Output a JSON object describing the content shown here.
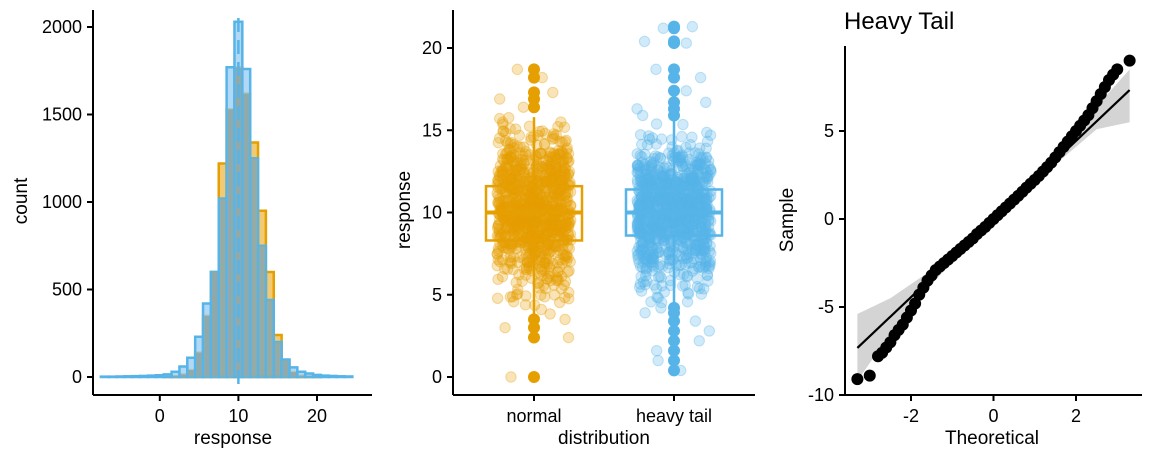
{
  "colors": {
    "normal": "#E69F00",
    "heavy_tail": "#56B4E9",
    "heavy_tail_fill": "#9DCFF2",
    "overlap": "#8FA9A8",
    "qq_points": "#000000",
    "qq_band": "#CCCCCC"
  },
  "chart_data": [
    {
      "type": "histogram",
      "title": "",
      "xlabel": "response",
      "ylabel": "count",
      "xlim": [
        -8.5,
        27
      ],
      "ylim": [
        -100,
        2100
      ],
      "xticks": [
        "0",
        "10",
        "20"
      ],
      "yticks": [
        "0",
        "500",
        "1000",
        "1500",
        "2000"
      ],
      "bin_width": 1,
      "bins": [
        -7,
        -6,
        -5,
        -4,
        -3,
        -2,
        -1,
        0,
        1,
        2,
        3,
        4,
        5,
        6,
        7,
        8,
        9,
        10,
        11,
        12,
        13,
        14,
        15,
        16,
        17,
        18,
        19,
        20,
        21,
        22,
        23,
        24
      ],
      "series": [
        {
          "name": "normal",
          "values": [
            0,
            0,
            0,
            0,
            0,
            0,
            0,
            0,
            2,
            5,
            15,
            40,
            140,
            350,
            600,
            1220,
            1530,
            1770,
            1620,
            1340,
            950,
            600,
            240,
            95,
            28,
            8,
            3,
            1,
            0,
            0,
            0,
            0
          ]
        },
        {
          "name": "heavy tail",
          "values": [
            2,
            2,
            3,
            4,
            5,
            6,
            8,
            10,
            15,
            30,
            60,
            110,
            230,
            420,
            600,
            1020,
            1770,
            2030,
            1760,
            1250,
            750,
            440,
            200,
            100,
            55,
            30,
            20,
            12,
            8,
            6,
            4,
            3
          ]
        }
      ],
      "reference_line": 10
    },
    {
      "type": "box",
      "title": "",
      "xlabel": "distribution",
      "ylabel": "response",
      "ylim": [
        -1,
        22
      ],
      "categories": [
        "normal",
        "heavy tail"
      ],
      "yticks": [
        "0",
        "5",
        "10",
        "15",
        "20"
      ],
      "boxes": [
        {
          "name": "normal",
          "q1": 8.3,
          "median": 10.0,
          "q3": 11.6,
          "whisker_low": 3.8,
          "whisker_high": 15.8,
          "outliers": [
            0.0,
            2.4,
            3.0,
            3.5,
            16.4,
            16.9,
            17.3,
            18.2,
            18.7
          ]
        },
        {
          "name": "heavy tail",
          "q1": 8.6,
          "median": 10.0,
          "q3": 11.4,
          "whisker_low": 4.4,
          "whisker_high": 15.6,
          "outliers": [
            0.4,
            1.0,
            1.6,
            2.2,
            2.8,
            3.4,
            3.9,
            4.2,
            15.9,
            16.3,
            16.7,
            17.4,
            18.2,
            18.7,
            20.3,
            20.4,
            21.2,
            21.3
          ]
        }
      ]
    },
    {
      "type": "scatter",
      "title": "Heavy Tail",
      "xlabel": "Theoretical",
      "ylabel": "Sample",
      "xlim": [
        -3.6,
        3.6
      ],
      "ylim": [
        -10,
        9.8
      ],
      "xticks": [
        "-2",
        "0",
        "2"
      ],
      "yticks": [
        "-10",
        "-5",
        "0",
        "5"
      ],
      "reference_line": {
        "intercept": 0.0,
        "slope": 2.22
      },
      "points": [
        [
          -3.3,
          -9.1
        ],
        [
          -3.0,
          -8.9
        ],
        [
          -2.8,
          -7.8
        ],
        [
          -2.7,
          -7.6
        ],
        [
          -2.6,
          -7.3
        ],
        [
          -2.5,
          -7.0
        ],
        [
          -2.4,
          -6.6
        ],
        [
          -2.3,
          -6.3
        ],
        [
          -2.2,
          -6.0
        ],
        [
          -2.1,
          -5.6
        ],
        [
          -2.0,
          -5.2
        ],
        [
          -1.9,
          -4.8
        ],
        [
          -1.8,
          -4.3
        ],
        [
          -1.7,
          -3.9
        ],
        [
          -1.6,
          -3.5
        ],
        [
          -1.5,
          -3.2
        ],
        [
          -1.4,
          -2.9
        ],
        [
          -1.3,
          -2.7
        ],
        [
          -1.2,
          -2.5
        ],
        [
          -1.1,
          -2.3
        ],
        [
          -1.0,
          -2.1
        ],
        [
          -0.9,
          -1.9
        ],
        [
          -0.8,
          -1.7
        ],
        [
          -0.7,
          -1.5
        ],
        [
          -0.6,
          -1.3
        ],
        [
          -0.5,
          -1.1
        ],
        [
          -0.4,
          -0.85
        ],
        [
          -0.3,
          -0.65
        ],
        [
          -0.2,
          -0.45
        ],
        [
          -0.1,
          -0.22
        ],
        [
          0.0,
          0.0
        ],
        [
          0.1,
          0.22
        ],
        [
          0.2,
          0.44
        ],
        [
          0.3,
          0.66
        ],
        [
          0.4,
          0.88
        ],
        [
          0.5,
          1.1
        ],
        [
          0.6,
          1.32
        ],
        [
          0.7,
          1.55
        ],
        [
          0.8,
          1.78
        ],
        [
          0.9,
          2.0
        ],
        [
          1.0,
          2.22
        ],
        [
          1.1,
          2.45
        ],
        [
          1.2,
          2.7
        ],
        [
          1.3,
          2.95
        ],
        [
          1.4,
          3.2
        ],
        [
          1.5,
          3.5
        ],
        [
          1.6,
          3.8
        ],
        [
          1.7,
          4.1
        ],
        [
          1.8,
          4.4
        ],
        [
          1.9,
          4.7
        ],
        [
          2.0,
          5.0
        ],
        [
          2.1,
          5.3
        ],
        [
          2.2,
          5.6
        ],
        [
          2.3,
          5.9
        ],
        [
          2.4,
          6.3
        ],
        [
          2.5,
          6.7
        ],
        [
          2.6,
          7.1
        ],
        [
          2.7,
          7.5
        ],
        [
          2.8,
          7.9
        ],
        [
          2.9,
          8.2
        ],
        [
          3.0,
          8.5
        ],
        [
          3.3,
          9.0
        ]
      ],
      "confidence_band": {
        "x": [
          -3.3,
          -2.5,
          -1.5,
          -0.5,
          0.5,
          1.5,
          2.5,
          3.3
        ],
        "lower": [
          -9.2,
          -6.5,
          -3.7,
          -1.2,
          1.0,
          3.1,
          5.1,
          5.5
        ],
        "upper": [
          -5.4,
          -4.5,
          -2.9,
          -1.0,
          1.2,
          3.6,
          6.4,
          8.5
        ]
      }
    }
  ]
}
